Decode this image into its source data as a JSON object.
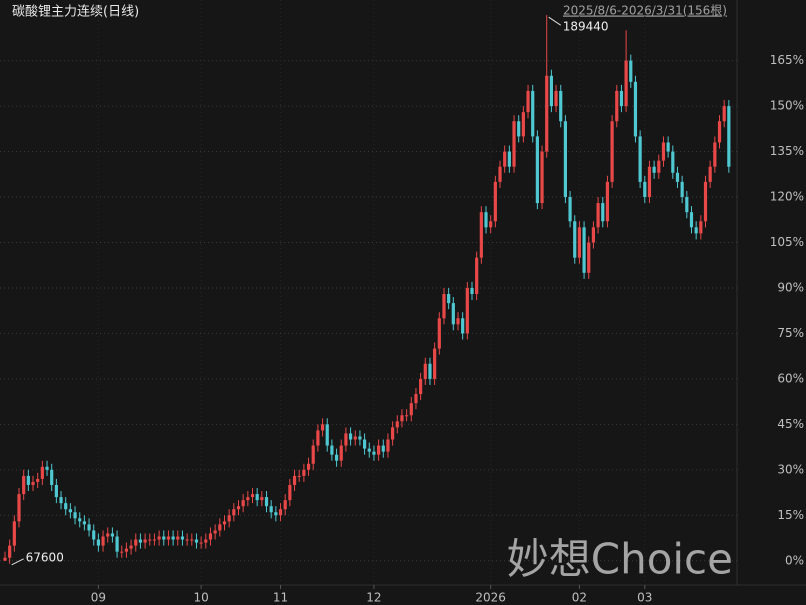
{
  "chart_data": {
    "type": "candlestick",
    "title": "碳酸锂主力连续(日线)",
    "subtitle": "2025/8/6-2026/3/31(156根)",
    "watermark": "妙想Choice",
    "annotations": {
      "high": "189440",
      "low": "67600"
    },
    "up_color": "#e84848",
    "down_color": "#4fc8d2",
    "grid": true,
    "ylim": [
      -8,
      185
    ],
    "yticks": [
      {
        "value": 0,
        "label": "0%"
      },
      {
        "value": 15,
        "label": "15%"
      },
      {
        "value": 30,
        "label": "30%"
      },
      {
        "value": 45,
        "label": "45%"
      },
      {
        "value": 60,
        "label": "60%"
      },
      {
        "value": 75,
        "label": "75%"
      },
      {
        "value": 90,
        "label": "90%"
      },
      {
        "value": 105,
        "label": "105%"
      },
      {
        "value": 120,
        "label": "120%"
      },
      {
        "value": 135,
        "label": "135%"
      },
      {
        "value": 150,
        "label": "150%"
      },
      {
        "value": 165,
        "label": "165%"
      }
    ],
    "categories": [
      null,
      null,
      null,
      null,
      null,
      null,
      null,
      null,
      null,
      null,
      null,
      null,
      null,
      null,
      null,
      null,
      null,
      null,
      null,
      null,
      "09",
      null,
      null,
      null,
      null,
      null,
      null,
      null,
      null,
      null,
      null,
      null,
      null,
      null,
      null,
      null,
      null,
      null,
      null,
      null,
      null,
      null,
      "10",
      null,
      null,
      null,
      null,
      null,
      null,
      null,
      null,
      null,
      null,
      null,
      null,
      null,
      null,
      null,
      null,
      "11",
      null,
      null,
      null,
      null,
      null,
      null,
      null,
      null,
      null,
      null,
      null,
      null,
      null,
      null,
      null,
      null,
      null,
      null,
      null,
      "12",
      null,
      null,
      null,
      null,
      null,
      null,
      null,
      null,
      null,
      null,
      null,
      null,
      null,
      null,
      null,
      null,
      null,
      null,
      null,
      null,
      null,
      null,
      null,
      null,
      "2026",
      null,
      null,
      null,
      null,
      null,
      null,
      null,
      null,
      null,
      null,
      null,
      null,
      null,
      null,
      null,
      null,
      null,
      null,
      "02",
      null,
      null,
      null,
      null,
      null,
      null,
      null,
      null,
      null,
      null,
      null,
      null,
      null,
      "03",
      null,
      null,
      null,
      null,
      null,
      null,
      null,
      null,
      null,
      null,
      null,
      null,
      null,
      null,
      null,
      null,
      null,
      null
    ],
    "open": [
      0,
      1,
      5,
      13,
      22,
      28,
      25,
      26,
      27,
      31,
      30,
      25,
      21,
      19,
      17,
      16,
      14,
      13,
      12,
      10,
      7,
      5,
      8,
      9,
      8,
      3,
      3,
      4,
      5,
      7,
      6,
      7,
      7,
      7,
      8,
      7,
      8,
      7,
      8,
      7,
      7,
      7,
      6,
      6,
      7,
      9,
      10,
      12,
      13,
      15,
      17,
      18,
      20,
      21,
      22,
      20,
      21,
      18,
      16,
      15,
      17,
      20,
      25,
      28,
      28,
      30,
      32,
      38,
      43,
      45,
      38,
      35,
      33,
      38,
      42,
      40,
      41,
      40,
      37,
      36,
      35,
      38,
      36,
      40,
      44,
      46,
      48,
      48,
      52,
      55,
      60,
      65,
      60,
      70,
      80,
      88,
      85,
      78,
      80,
      75,
      90,
      88,
      100,
      115,
      110,
      112,
      125,
      130,
      135,
      130,
      145,
      140,
      148,
      155,
      140,
      118,
      135,
      160,
      150,
      155,
      145,
      120,
      112,
      100,
      110,
      95,
      105,
      110,
      118,
      112,
      125,
      145,
      155,
      150,
      165,
      158,
      140,
      125,
      120,
      130,
      128,
      132,
      138,
      135,
      128,
      125,
      120,
      115,
      110,
      108,
      112,
      125,
      130,
      138,
      145,
      150
    ],
    "high": [
      3,
      7,
      15,
      24,
      30,
      30,
      28,
      29,
      33,
      33,
      32,
      27,
      23,
      21,
      19,
      18,
      16,
      15,
      14,
      12,
      9,
      10,
      11,
      11,
      10,
      5,
      6,
      7,
      9,
      9,
      9,
      9,
      9,
      10,
      10,
      10,
      10,
      10,
      10,
      9,
      9,
      9,
      8,
      9,
      11,
      12,
      14,
      15,
      17,
      19,
      20,
      22,
      23,
      24,
      24,
      23,
      23,
      20,
      18,
      19,
      22,
      27,
      30,
      30,
      32,
      34,
      40,
      45,
      47,
      47,
      40,
      37,
      40,
      44,
      44,
      43,
      43,
      42,
      39,
      38,
      40,
      40,
      42,
      46,
      48,
      50,
      50,
      54,
      57,
      62,
      67,
      67,
      72,
      82,
      90,
      90,
      87,
      82,
      82,
      92,
      92,
      102,
      117,
      117,
      114,
      127,
      132,
      137,
      137,
      147,
      147,
      150,
      157,
      157,
      142,
      137,
      180,
      162,
      157,
      157,
      147,
      122,
      114,
      112,
      112,
      107,
      112,
      120,
      120,
      127,
      147,
      157,
      157,
      175,
      167,
      160,
      142,
      127,
      132,
      132,
      134,
      140,
      140,
      137,
      130,
      127,
      122,
      117,
      112,
      114,
      127,
      132,
      140,
      147,
      152,
      152
    ],
    "low": [
      0,
      -1,
      3,
      11,
      20,
      23,
      23,
      24,
      25,
      28,
      23,
      19,
      17,
      15,
      14,
      12,
      11,
      10,
      8,
      5,
      3,
      3,
      6,
      6,
      1,
      1,
      1,
      2,
      3,
      4,
      4,
      5,
      5,
      5,
      5,
      5,
      5,
      5,
      5,
      5,
      5,
      4,
      4,
      4,
      5,
      7,
      8,
      10,
      11,
      13,
      15,
      16,
      18,
      19,
      18,
      18,
      16,
      14,
      13,
      13,
      15,
      18,
      23,
      26,
      26,
      28,
      30,
      36,
      41,
      36,
      33,
      31,
      31,
      36,
      38,
      38,
      38,
      35,
      34,
      33,
      33,
      34,
      34,
      38,
      42,
      44,
      46,
      46,
      50,
      53,
      58,
      58,
      58,
      68,
      78,
      83,
      76,
      76,
      73,
      73,
      86,
      86,
      98,
      108,
      108,
      110,
      123,
      128,
      128,
      128,
      138,
      138,
      146,
      138,
      116,
      116,
      133,
      148,
      148,
      143,
      118,
      110,
      98,
      98,
      93,
      93,
      103,
      108,
      110,
      110,
      123,
      143,
      148,
      148,
      156,
      138,
      123,
      118,
      118,
      126,
      126,
      130,
      133,
      126,
      123,
      118,
      113,
      108,
      106,
      106,
      110,
      123,
      128,
      136,
      143,
      128
    ],
    "close": [
      1,
      5,
      13,
      22,
      28,
      25,
      26,
      27,
      31,
      30,
      25,
      21,
      19,
      17,
      16,
      14,
      13,
      12,
      10,
      7,
      5,
      8,
      9,
      8,
      3,
      3,
      4,
      5,
      7,
      6,
      7,
      7,
      7,
      8,
      7,
      8,
      7,
      8,
      7,
      7,
      7,
      6,
      6,
      7,
      9,
      10,
      12,
      13,
      15,
      17,
      18,
      20,
      21,
      22,
      20,
      21,
      18,
      16,
      15,
      17,
      20,
      25,
      28,
      28,
      30,
      32,
      38,
      43,
      45,
      38,
      35,
      33,
      38,
      42,
      40,
      41,
      40,
      37,
      36,
      35,
      38,
      36,
      40,
      44,
      46,
      48,
      48,
      52,
      55,
      60,
      65,
      60,
      70,
      80,
      88,
      85,
      78,
      80,
      75,
      90,
      88,
      100,
      115,
      110,
      112,
      125,
      130,
      135,
      130,
      145,
      140,
      148,
      155,
      140,
      118,
      135,
      160,
      150,
      155,
      145,
      120,
      112,
      100,
      110,
      95,
      105,
      110,
      118,
      112,
      125,
      145,
      155,
      150,
      165,
      158,
      140,
      125,
      120,
      130,
      128,
      132,
      138,
      135,
      128,
      125,
      120,
      115,
      110,
      108,
      112,
      125,
      130,
      138,
      145,
      150,
      130
    ]
  }
}
